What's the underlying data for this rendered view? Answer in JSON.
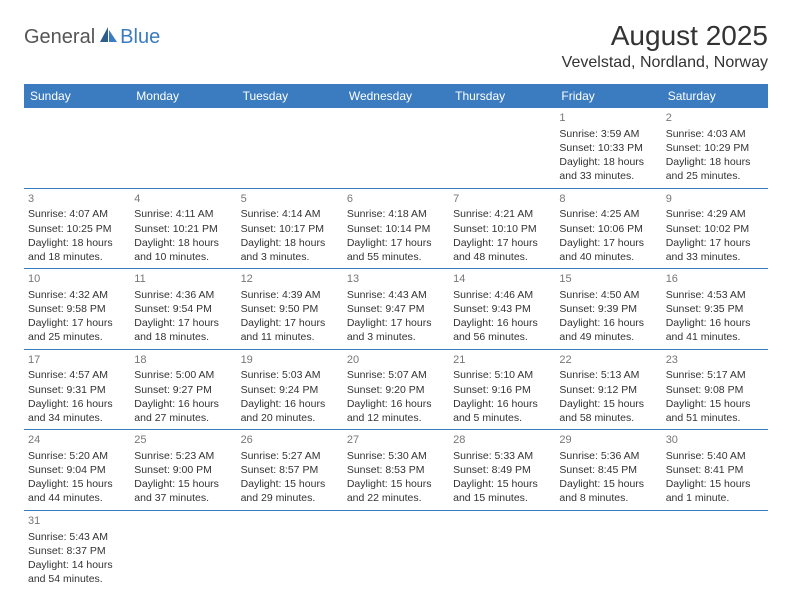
{
  "logo": {
    "general": "General",
    "blue": "Blue"
  },
  "title": "August 2025",
  "location": "Vevelstad, Nordland, Norway",
  "colors": {
    "header_bg": "#3b7bbf",
    "header_text": "#ffffff",
    "border": "#3b7bbf",
    "daynum": "#777777",
    "body_text": "#333333"
  },
  "dayHeaders": [
    "Sunday",
    "Monday",
    "Tuesday",
    "Wednesday",
    "Thursday",
    "Friday",
    "Saturday"
  ],
  "weeks": [
    [
      null,
      null,
      null,
      null,
      null,
      {
        "n": "1",
        "sr": "Sunrise: 3:59 AM",
        "ss": "Sunset: 10:33 PM",
        "dl1": "Daylight: 18 hours",
        "dl2": "and 33 minutes."
      },
      {
        "n": "2",
        "sr": "Sunrise: 4:03 AM",
        "ss": "Sunset: 10:29 PM",
        "dl1": "Daylight: 18 hours",
        "dl2": "and 25 minutes."
      }
    ],
    [
      {
        "n": "3",
        "sr": "Sunrise: 4:07 AM",
        "ss": "Sunset: 10:25 PM",
        "dl1": "Daylight: 18 hours",
        "dl2": "and 18 minutes."
      },
      {
        "n": "4",
        "sr": "Sunrise: 4:11 AM",
        "ss": "Sunset: 10:21 PM",
        "dl1": "Daylight: 18 hours",
        "dl2": "and 10 minutes."
      },
      {
        "n": "5",
        "sr": "Sunrise: 4:14 AM",
        "ss": "Sunset: 10:17 PM",
        "dl1": "Daylight: 18 hours",
        "dl2": "and 3 minutes."
      },
      {
        "n": "6",
        "sr": "Sunrise: 4:18 AM",
        "ss": "Sunset: 10:14 PM",
        "dl1": "Daylight: 17 hours",
        "dl2": "and 55 minutes."
      },
      {
        "n": "7",
        "sr": "Sunrise: 4:21 AM",
        "ss": "Sunset: 10:10 PM",
        "dl1": "Daylight: 17 hours",
        "dl2": "and 48 minutes."
      },
      {
        "n": "8",
        "sr": "Sunrise: 4:25 AM",
        "ss": "Sunset: 10:06 PM",
        "dl1": "Daylight: 17 hours",
        "dl2": "and 40 minutes."
      },
      {
        "n": "9",
        "sr": "Sunrise: 4:29 AM",
        "ss": "Sunset: 10:02 PM",
        "dl1": "Daylight: 17 hours",
        "dl2": "and 33 minutes."
      }
    ],
    [
      {
        "n": "10",
        "sr": "Sunrise: 4:32 AM",
        "ss": "Sunset: 9:58 PM",
        "dl1": "Daylight: 17 hours",
        "dl2": "and 25 minutes."
      },
      {
        "n": "11",
        "sr": "Sunrise: 4:36 AM",
        "ss": "Sunset: 9:54 PM",
        "dl1": "Daylight: 17 hours",
        "dl2": "and 18 minutes."
      },
      {
        "n": "12",
        "sr": "Sunrise: 4:39 AM",
        "ss": "Sunset: 9:50 PM",
        "dl1": "Daylight: 17 hours",
        "dl2": "and 11 minutes."
      },
      {
        "n": "13",
        "sr": "Sunrise: 4:43 AM",
        "ss": "Sunset: 9:47 PM",
        "dl1": "Daylight: 17 hours",
        "dl2": "and 3 minutes."
      },
      {
        "n": "14",
        "sr": "Sunrise: 4:46 AM",
        "ss": "Sunset: 9:43 PM",
        "dl1": "Daylight: 16 hours",
        "dl2": "and 56 minutes."
      },
      {
        "n": "15",
        "sr": "Sunrise: 4:50 AM",
        "ss": "Sunset: 9:39 PM",
        "dl1": "Daylight: 16 hours",
        "dl2": "and 49 minutes."
      },
      {
        "n": "16",
        "sr": "Sunrise: 4:53 AM",
        "ss": "Sunset: 9:35 PM",
        "dl1": "Daylight: 16 hours",
        "dl2": "and 41 minutes."
      }
    ],
    [
      {
        "n": "17",
        "sr": "Sunrise: 4:57 AM",
        "ss": "Sunset: 9:31 PM",
        "dl1": "Daylight: 16 hours",
        "dl2": "and 34 minutes."
      },
      {
        "n": "18",
        "sr": "Sunrise: 5:00 AM",
        "ss": "Sunset: 9:27 PM",
        "dl1": "Daylight: 16 hours",
        "dl2": "and 27 minutes."
      },
      {
        "n": "19",
        "sr": "Sunrise: 5:03 AM",
        "ss": "Sunset: 9:24 PM",
        "dl1": "Daylight: 16 hours",
        "dl2": "and 20 minutes."
      },
      {
        "n": "20",
        "sr": "Sunrise: 5:07 AM",
        "ss": "Sunset: 9:20 PM",
        "dl1": "Daylight: 16 hours",
        "dl2": "and 12 minutes."
      },
      {
        "n": "21",
        "sr": "Sunrise: 5:10 AM",
        "ss": "Sunset: 9:16 PM",
        "dl1": "Daylight: 16 hours",
        "dl2": "and 5 minutes."
      },
      {
        "n": "22",
        "sr": "Sunrise: 5:13 AM",
        "ss": "Sunset: 9:12 PM",
        "dl1": "Daylight: 15 hours",
        "dl2": "and 58 minutes."
      },
      {
        "n": "23",
        "sr": "Sunrise: 5:17 AM",
        "ss": "Sunset: 9:08 PM",
        "dl1": "Daylight: 15 hours",
        "dl2": "and 51 minutes."
      }
    ],
    [
      {
        "n": "24",
        "sr": "Sunrise: 5:20 AM",
        "ss": "Sunset: 9:04 PM",
        "dl1": "Daylight: 15 hours",
        "dl2": "and 44 minutes."
      },
      {
        "n": "25",
        "sr": "Sunrise: 5:23 AM",
        "ss": "Sunset: 9:00 PM",
        "dl1": "Daylight: 15 hours",
        "dl2": "and 37 minutes."
      },
      {
        "n": "26",
        "sr": "Sunrise: 5:27 AM",
        "ss": "Sunset: 8:57 PM",
        "dl1": "Daylight: 15 hours",
        "dl2": "and 29 minutes."
      },
      {
        "n": "27",
        "sr": "Sunrise: 5:30 AM",
        "ss": "Sunset: 8:53 PM",
        "dl1": "Daylight: 15 hours",
        "dl2": "and 22 minutes."
      },
      {
        "n": "28",
        "sr": "Sunrise: 5:33 AM",
        "ss": "Sunset: 8:49 PM",
        "dl1": "Daylight: 15 hours",
        "dl2": "and 15 minutes."
      },
      {
        "n": "29",
        "sr": "Sunrise: 5:36 AM",
        "ss": "Sunset: 8:45 PM",
        "dl1": "Daylight: 15 hours",
        "dl2": "and 8 minutes."
      },
      {
        "n": "30",
        "sr": "Sunrise: 5:40 AM",
        "ss": "Sunset: 8:41 PM",
        "dl1": "Daylight: 15 hours",
        "dl2": "and 1 minute."
      }
    ],
    [
      {
        "n": "31",
        "sr": "Sunrise: 5:43 AM",
        "ss": "Sunset: 8:37 PM",
        "dl1": "Daylight: 14 hours",
        "dl2": "and 54 minutes."
      },
      null,
      null,
      null,
      null,
      null,
      null
    ]
  ]
}
